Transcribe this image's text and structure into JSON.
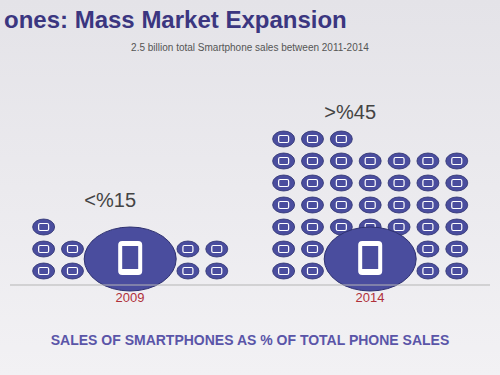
{
  "chart_data": {
    "type": "pictograph",
    "title": "ones: Mass Market Expansion",
    "subtitle": "2.5 billion total Smartphone sales between 2011-2014",
    "categories": [
      "2009",
      "2014"
    ],
    "values": [
      15,
      45
    ],
    "value_labels": [
      "<%15",
      ">%45"
    ],
    "data_labels": true,
    "tick_labels": "x",
    "x_label": "SALES OF SMARTPHONES AS % OF TOTAL PHONE SALES",
    "color": "#4a4d9e"
  }
}
